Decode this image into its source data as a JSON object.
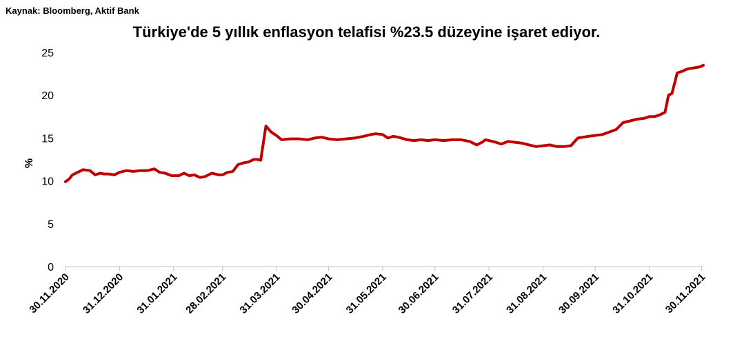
{
  "source_note": "Kaynak: Bloomberg, Aktif Bank",
  "chart_data": {
    "type": "line",
    "title": "Türkiye'de 5 yıllık enflasyon telafisi %23.5 düzeyine işaret ediyor.",
    "xlabel": "",
    "ylabel": "%",
    "ylim": [
      0,
      25
    ],
    "yticks": [
      0,
      5,
      10,
      15,
      20,
      25
    ],
    "xticks": [
      "30.11.2020",
      "31.12.2020",
      "31.01.2021",
      "28.02.2021",
      "31.03.2021",
      "30.04.2021",
      "31.05.2021",
      "30.06.2021",
      "31.07.2021",
      "31.08.2021",
      "30.09.2021",
      "31.10.2021",
      "30.11.2021"
    ],
    "grid": false,
    "legend": "none",
    "line_color": "#C00000",
    "series": [
      {
        "x": [
          "2020-11-30",
          "2020-12-02",
          "2020-12-04",
          "2020-12-07",
          "2020-12-10",
          "2020-12-14",
          "2020-12-17",
          "2020-12-20",
          "2020-12-22",
          "2020-12-25",
          "2020-12-28",
          "2020-12-31",
          "2021-01-04",
          "2021-01-08",
          "2021-01-12",
          "2021-01-16",
          "2021-01-20",
          "2021-01-23",
          "2021-01-26",
          "2021-01-30",
          "2021-02-03",
          "2021-02-06",
          "2021-02-09",
          "2021-02-12",
          "2021-02-15",
          "2021-02-18",
          "2021-02-22",
          "2021-02-26",
          "2021-02-28",
          "2021-03-03",
          "2021-03-06",
          "2021-03-09",
          "2021-03-12",
          "2021-03-15",
          "2021-03-18",
          "2021-03-20",
          "2021-03-22",
          "2021-03-25",
          "2021-03-28",
          "2021-03-31",
          "2021-04-03",
          "2021-04-08",
          "2021-04-13",
          "2021-04-18",
          "2021-04-22",
          "2021-04-26",
          "2021-04-30",
          "2021-05-05",
          "2021-05-10",
          "2021-05-15",
          "2021-05-20",
          "2021-05-24",
          "2021-05-27",
          "2021-05-31",
          "2021-06-03",
          "2021-06-06",
          "2021-06-09",
          "2021-06-14",
          "2021-06-18",
          "2021-06-22",
          "2021-06-26",
          "2021-06-30",
          "2021-07-05",
          "2021-07-10",
          "2021-07-15",
          "2021-07-20",
          "2021-07-24",
          "2021-07-27",
          "2021-07-29",
          "2021-07-31",
          "2021-08-04",
          "2021-08-07",
          "2021-08-11",
          "2021-08-15",
          "2021-08-19",
          "2021-08-23",
          "2021-08-27",
          "2021-08-31",
          "2021-09-04",
          "2021-09-08",
          "2021-09-12",
          "2021-09-16",
          "2021-09-20",
          "2021-09-23",
          "2021-09-26",
          "2021-09-30",
          "2021-10-04",
          "2021-10-08",
          "2021-10-12",
          "2021-10-16",
          "2021-10-20",
          "2021-10-24",
          "2021-10-28",
          "2021-10-31",
          "2021-11-03",
          "2021-11-06",
          "2021-11-09",
          "2021-11-11",
          "2021-11-13",
          "2021-11-16",
          "2021-11-19",
          "2021-11-21",
          "2021-11-23",
          "2021-11-26",
          "2021-11-29",
          "2021-12-01"
        ],
        "values": [
          9.9,
          10.2,
          10.7,
          11.0,
          11.3,
          11.2,
          10.7,
          10.9,
          10.8,
          10.8,
          10.7,
          11.0,
          11.2,
          11.1,
          11.2,
          11.2,
          11.4,
          11.0,
          10.9,
          10.6,
          10.6,
          10.9,
          10.6,
          10.7,
          10.4,
          10.5,
          10.9,
          10.7,
          10.7,
          11.0,
          11.1,
          11.9,
          12.1,
          12.2,
          12.5,
          12.5,
          12.4,
          16.4,
          15.7,
          15.3,
          14.8,
          14.9,
          14.9,
          14.8,
          15.0,
          15.1,
          14.9,
          14.8,
          14.9,
          15.0,
          15.2,
          15.4,
          15.5,
          15.4,
          15.0,
          15.2,
          15.1,
          14.8,
          14.7,
          14.8,
          14.7,
          14.8,
          14.7,
          14.8,
          14.8,
          14.6,
          14.2,
          14.5,
          14.8,
          14.7,
          14.5,
          14.3,
          14.6,
          14.5,
          14.4,
          14.2,
          14.0,
          14.1,
          14.2,
          14.0,
          14.0,
          14.1,
          15.0,
          15.1,
          15.2,
          15.3,
          15.4,
          15.7,
          16.0,
          16.8,
          17.0,
          17.2,
          17.3,
          17.5,
          17.5,
          17.7,
          18.0,
          20.0,
          20.2,
          22.6,
          22.8,
          23.0,
          23.1,
          23.2,
          23.3,
          23.5
        ]
      }
    ]
  }
}
